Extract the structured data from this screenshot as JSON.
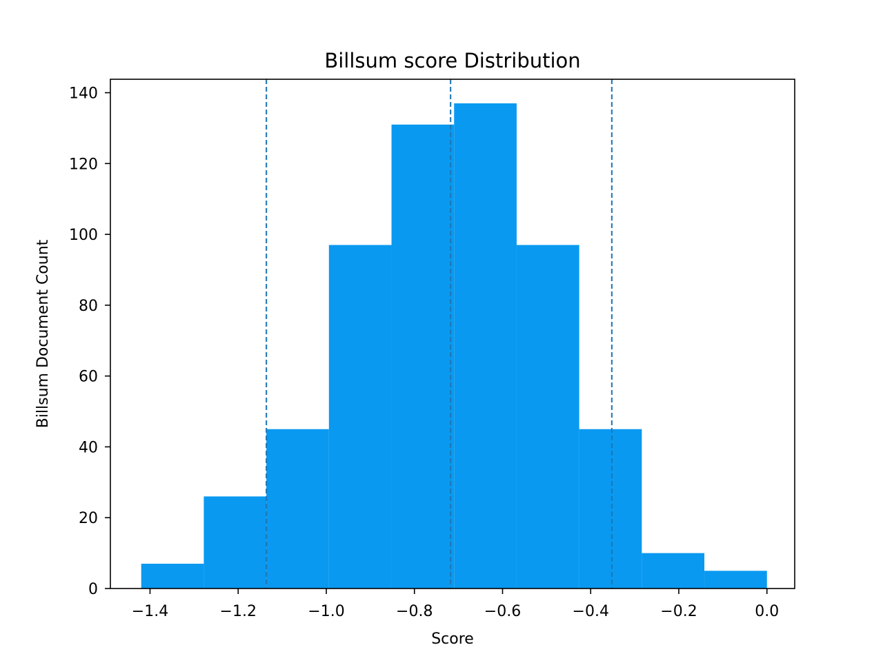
{
  "chart_data": {
    "type": "bar",
    "title": "Billsum score Distribution",
    "xlabel": "Score",
    "ylabel": "Billsum Document Count",
    "xlim": [
      -1.49,
      0.063
    ],
    "ylim": [
      0,
      143.8
    ],
    "bar_color": "#0a99f0",
    "line_color": "#1f77b4",
    "bins": [
      {
        "start": -1.42,
        "end": -1.278,
        "count": 7
      },
      {
        "start": -1.278,
        "end": -1.136,
        "count": 26
      },
      {
        "start": -1.136,
        "end": -0.994,
        "count": 45
      },
      {
        "start": -0.994,
        "end": -0.852,
        "count": 97
      },
      {
        "start": -0.852,
        "end": -0.71,
        "count": 131
      },
      {
        "start": -0.71,
        "end": -0.568,
        "count": 137
      },
      {
        "start": -0.568,
        "end": -0.426,
        "count": 97
      },
      {
        "start": -0.426,
        "end": -0.284,
        "count": 45
      },
      {
        "start": -0.284,
        "end": -0.142,
        "count": 10
      },
      {
        "start": -0.142,
        "end": 0.0,
        "count": 5
      }
    ],
    "vlines": [
      -1.136,
      -0.718,
      -0.352
    ],
    "vline_style": "dashed",
    "x_ticks": [
      {
        "value": -1.4,
        "label": "−1.4"
      },
      {
        "value": -1.2,
        "label": "−1.2"
      },
      {
        "value": -1.0,
        "label": "−1.0"
      },
      {
        "value": -0.8,
        "label": "−0.8"
      },
      {
        "value": -0.6,
        "label": "−0.6"
      },
      {
        "value": -0.4,
        "label": "−0.4"
      },
      {
        "value": -0.2,
        "label": "−0.2"
      },
      {
        "value": 0.0,
        "label": "0.0"
      }
    ],
    "y_ticks": [
      {
        "value": 0,
        "label": "0"
      },
      {
        "value": 20,
        "label": "20"
      },
      {
        "value": 40,
        "label": "40"
      },
      {
        "value": 60,
        "label": "60"
      },
      {
        "value": 80,
        "label": "80"
      },
      {
        "value": 100,
        "label": "100"
      },
      {
        "value": 120,
        "label": "120"
      },
      {
        "value": 140,
        "label": "140"
      }
    ],
    "grid": false,
    "legend": "none"
  }
}
